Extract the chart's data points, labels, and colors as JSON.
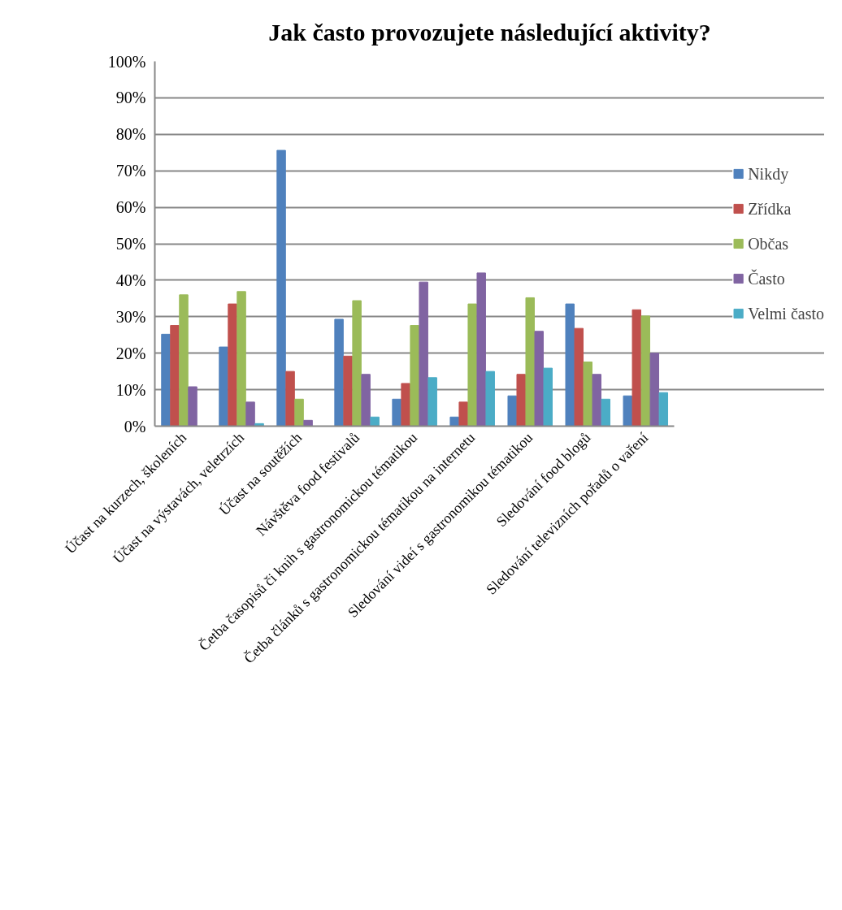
{
  "chart_data": {
    "type": "bar",
    "title": "Jak často provozujete následující aktivity?",
    "categories": [
      "Účast na kurzech, školeních",
      "Účast na výstavách, veletrzích",
      "Účast na soutěžích",
      "Návštěva food festivalů",
      "Četba časopisů či knih s gastronomickou tématikou",
      "Četba článků s gastronomickou tématikou na internetu",
      "Sledování videí s gastronomikou tématikou",
      "Sledování food blogů",
      "Sledování televizních pořadů o vaření"
    ],
    "series": [
      {
        "name": "Nikdy",
        "color": "#4f81bd",
        "values": [
          25.2,
          21.7,
          75.6,
          29.3,
          7.4,
          2.5,
          8.3,
          33.5,
          8.3
        ]
      },
      {
        "name": "Zřídka",
        "color": "#c0504d",
        "values": [
          27.6,
          33.5,
          15.0,
          19.2,
          11.7,
          6.6,
          14.2,
          26.8,
          31.9
        ]
      },
      {
        "name": "Občas",
        "color": "#9bbb59",
        "values": [
          36.0,
          36.9,
          7.4,
          34.4,
          27.6,
          33.5,
          35.2,
          17.6,
          30.2
        ]
      },
      {
        "name": "Často",
        "color": "#8064a2",
        "values": [
          10.8,
          6.6,
          1.6,
          14.2,
          39.5,
          42.0,
          26.0,
          14.2,
          20.0
        ]
      },
      {
        "name": "Velmi často",
        "color": "#4bacc6",
        "values": [
          0,
          0.7,
          0,
          2.5,
          13.3,
          15.0,
          15.9,
          7.4,
          9.2
        ]
      }
    ],
    "ylim": [
      0,
      100
    ],
    "yticks": [
      {
        "value": 0,
        "label": "0%"
      },
      {
        "value": 10,
        "label": "10%"
      },
      {
        "value": 20,
        "label": "20%"
      },
      {
        "value": 30,
        "label": "30%"
      },
      {
        "value": 40,
        "label": "40%"
      },
      {
        "value": 50,
        "label": "50%"
      },
      {
        "value": 60,
        "label": "60%"
      },
      {
        "value": 70,
        "label": "70%"
      },
      {
        "value": 80,
        "label": "80%"
      },
      {
        "value": 90,
        "label": "90%"
      },
      {
        "value": 100,
        "label": "100%"
      }
    ],
    "grid": "y",
    "legend": "right"
  }
}
